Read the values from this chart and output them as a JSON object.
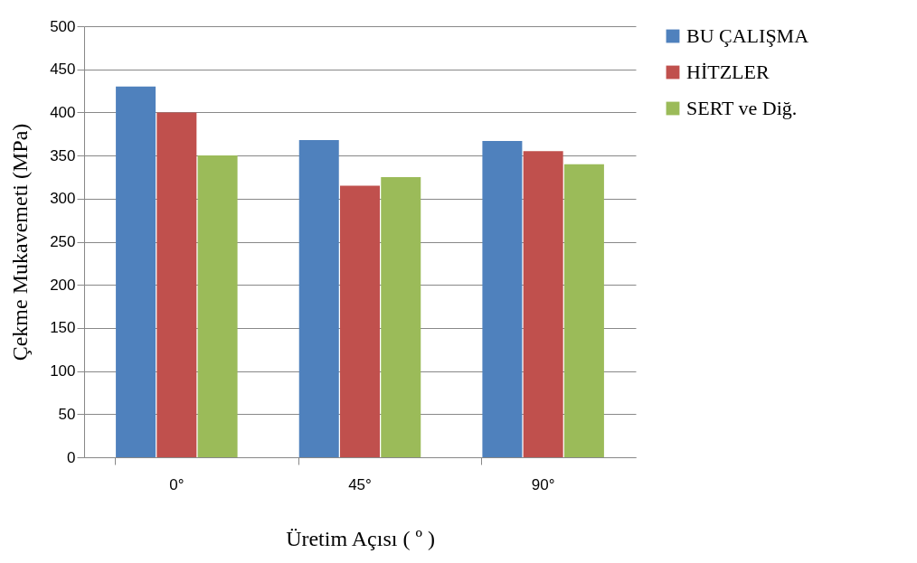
{
  "chart_data": {
    "type": "bar",
    "xlabel": "Üretim Açısı ( º )",
    "ylabel": "Çekme Mukavemeti (MPa)",
    "categories": [
      "0°",
      "45°",
      "90°"
    ],
    "series": [
      {
        "name": "BU ÇALIŞMA",
        "color": "#4f81bd",
        "values": [
          430,
          368,
          367
        ]
      },
      {
        "name": "HİTZLER",
        "color": "#c0504d",
        "values": [
          400,
          315,
          355
        ]
      },
      {
        "name": "SERT ve Diğ.",
        "color": "#9bbb59",
        "values": [
          350,
          325,
          340
        ]
      }
    ],
    "ylim": [
      0,
      500
    ],
    "yticks": [
      0,
      50,
      100,
      150,
      200,
      250,
      300,
      350,
      400,
      450,
      500
    ],
    "grid": "y",
    "legend": "right"
  }
}
